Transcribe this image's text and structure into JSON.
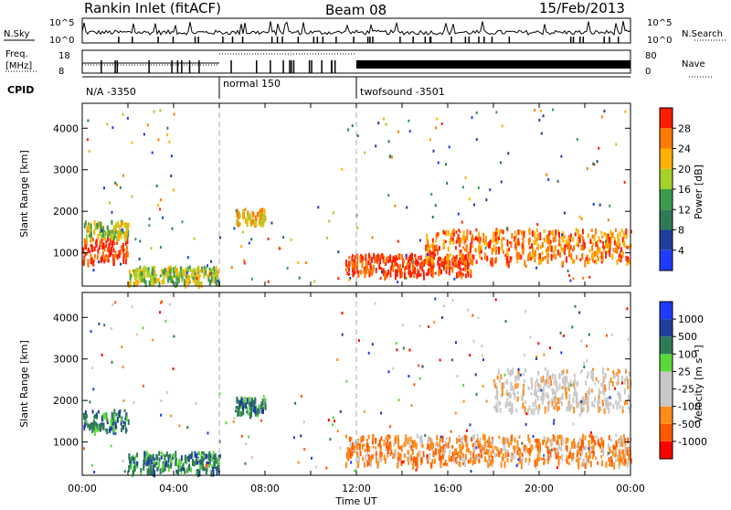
{
  "header": {
    "station": "Rankin Inlet (fitACF)",
    "beam": "Beam 08",
    "date": "15/Feb/2013"
  },
  "noise_panel": {
    "left_label": "N.Sky",
    "right_label": "N.Search",
    "left_ticks": [
      "10^5",
      "10^0"
    ],
    "right_ticks": [
      "10^5",
      "10^0"
    ]
  },
  "freq_panel": {
    "left_label_1": "Freq.",
    "left_label_2": "[MHz]",
    "left_ticks": [
      "18",
      "8"
    ],
    "right_label": "Nave",
    "right_ticks": [
      "80",
      "0"
    ]
  },
  "cpid": {
    "label": "CPID",
    "modes": [
      {
        "name": "N/A -3350",
        "start_hour": 0
      },
      {
        "name": "normal 150",
        "start_hour": 6
      },
      {
        "name": "twofsound -3501",
        "start_hour": 12
      }
    ]
  },
  "colors": {
    "power_scale": [
      "#1f3bff",
      "#1e3f9e",
      "#2e7a57",
      "#3d9a4b",
      "#a6d02a",
      "#ffb000",
      "#ff7a00",
      "#ff1d00"
    ],
    "velocity_scale": [
      "#ff0000",
      "#ff5a00",
      "#ff8c1a",
      "#c8c8c8",
      "#c8c8c8",
      "#5ad83a",
      "#2e7a57",
      "#1e3f9e",
      "#1f3bff"
    ]
  },
  "power_colorbar": {
    "label": "Power [dB]",
    "ticks": [
      "4",
      "8",
      "12",
      "16",
      "20",
      "24",
      "28"
    ]
  },
  "velocity_colorbar": {
    "label": "Velocity [m s⁻¹]",
    "ticks": [
      "-1000",
      "-500",
      "-100",
      "-25",
      "25",
      "100",
      "500",
      "1000"
    ]
  },
  "chart_data": [
    {
      "type": "heatmap",
      "name": "power",
      "ylabel": "Slant Range [km]",
      "xlabel": "Time UT",
      "xlim_hours": [
        0,
        24
      ],
      "ylim_km": [
        200,
        4600
      ],
      "yticks": [
        1000,
        2000,
        3000,
        4000
      ],
      "x_tick_labels": [
        "00:00",
        "04:00",
        "08:00",
        "12:00",
        "16:00",
        "20:00",
        "00:00"
      ],
      "colorbar_range_db": [
        0,
        30
      ],
      "echo_regions": [
        {
          "t0": 0.0,
          "t1": 2.0,
          "r0": 800,
          "r1": 1400,
          "level": 7
        },
        {
          "t0": 0.0,
          "t1": 2.0,
          "r0": 1400,
          "r1": 1800,
          "level": 4
        },
        {
          "t0": 2.0,
          "t1": 6.0,
          "r0": 300,
          "r1": 700,
          "level": 4
        },
        {
          "t0": 6.7,
          "t1": 8.0,
          "r0": 1700,
          "r1": 2100,
          "level": 5
        },
        {
          "t0": 11.5,
          "t1": 17.0,
          "r0": 500,
          "r1": 1000,
          "level": 7
        },
        {
          "t0": 15.0,
          "t1": 24.0,
          "r0": 800,
          "r1": 1600,
          "level": 6
        }
      ]
    },
    {
      "type": "heatmap",
      "name": "velocity",
      "ylabel": "Slant Range [km]",
      "xlabel": "Time UT",
      "xlim_hours": [
        0,
        24
      ],
      "ylim_km": [
        200,
        4600
      ],
      "yticks": [
        1000,
        2000,
        3000,
        4000
      ],
      "x_tick_labels": [
        "00:00",
        "04:00",
        "08:00",
        "12:00",
        "16:00",
        "20:00",
        "00:00"
      ],
      "colorbar_range_ms": [
        -1000,
        1000
      ],
      "echo_regions": [
        {
          "t0": 0.0,
          "t1": 2.0,
          "r0": 1300,
          "r1": 1800,
          "level": 6
        },
        {
          "t0": 2.0,
          "t1": 6.0,
          "r0": 300,
          "r1": 800,
          "level": 6
        },
        {
          "t0": 6.7,
          "t1": 8.0,
          "r0": 1700,
          "r1": 2100,
          "level": 6
        },
        {
          "t0": 11.5,
          "t1": 24.0,
          "r0": 500,
          "r1": 1200,
          "level": 2
        },
        {
          "t0": 18.0,
          "t1": 24.0,
          "r0": 1800,
          "r1": 2800,
          "level": 3
        }
      ]
    }
  ]
}
